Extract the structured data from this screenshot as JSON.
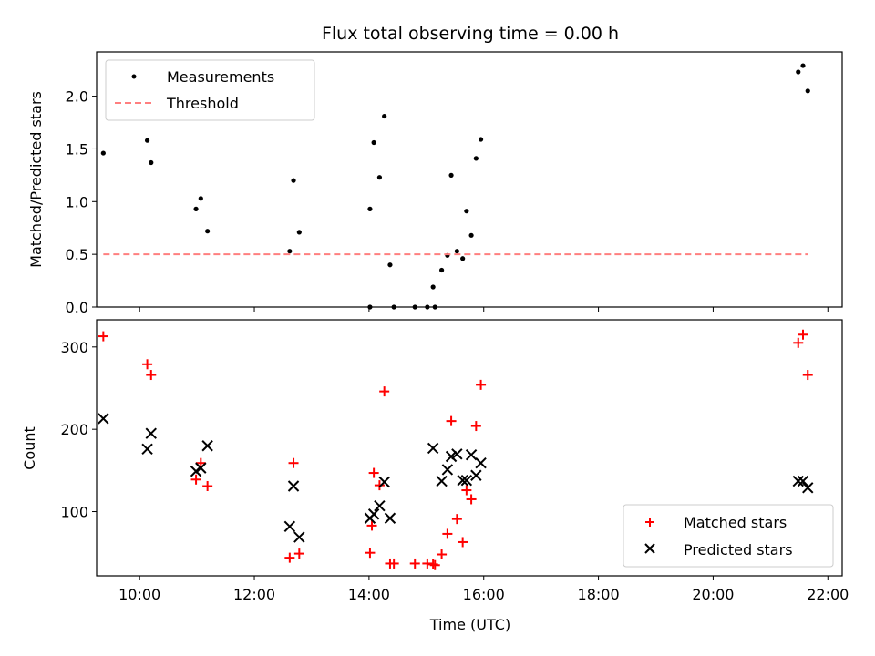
{
  "chart_data": [
    {
      "type": "scatter",
      "title": "Flux total observing time = 0.00 h",
      "ylabel": "Matched/Predicted stars",
      "xlim": [
        "09:15",
        "22:15"
      ],
      "ylim": [
        0,
        2.42
      ],
      "yticks": [
        "0.0",
        "0.5",
        "1.0",
        "1.5",
        "2.0"
      ],
      "legend_position": "top-left",
      "series": [
        {
          "name": "Measurements",
          "color": "#000000",
          "marker": "dot",
          "points": [
            [
              "09:22",
              1.46
            ],
            [
              "10:08",
              1.58
            ],
            [
              "10:12",
              1.37
            ],
            [
              "10:59",
              0.93
            ],
            [
              "11:04",
              1.03
            ],
            [
              "11:11",
              0.72
            ],
            [
              "12:37",
              0.53
            ],
            [
              "12:41",
              1.2
            ],
            [
              "12:47",
              0.71
            ],
            [
              "14:01",
              0.93
            ],
            [
              "14:05",
              1.56
            ],
            [
              "14:11",
              1.23
            ],
            [
              "14:16",
              1.81
            ],
            [
              "14:22",
              0.4
            ],
            [
              "14:26",
              0.0
            ],
            [
              "14:01",
              0.0
            ],
            [
              "14:48",
              0.0
            ],
            [
              "15:01",
              0.0
            ],
            [
              "15:07",
              0.19
            ],
            [
              "15:09",
              0.0
            ],
            [
              "15:16",
              0.35
            ],
            [
              "15:22",
              0.49
            ],
            [
              "15:26",
              1.25
            ],
            [
              "15:32",
              0.53
            ],
            [
              "15:38",
              0.46
            ],
            [
              "15:42",
              0.91
            ],
            [
              "15:47",
              0.68
            ],
            [
              "15:52",
              1.41
            ],
            [
              "15:57",
              1.59
            ],
            [
              "21:29",
              2.23
            ],
            [
              "21:34",
              2.29
            ],
            [
              "21:39",
              2.05
            ]
          ]
        },
        {
          "name": "Threshold",
          "color": "#ff7f7f",
          "style": "dashed",
          "points": [
            [
              "09:22",
              0.5
            ],
            [
              "21:39",
              0.5
            ]
          ]
        }
      ]
    },
    {
      "type": "scatter",
      "xlabel": "Time (UTC)",
      "ylabel": "Count",
      "xlim": [
        "09:15",
        "22:15"
      ],
      "ylim": [
        22,
        333
      ],
      "xticks": [
        "10:00",
        "12:00",
        "14:00",
        "16:00",
        "18:00",
        "20:00",
        "22:00"
      ],
      "yticks": [
        "100",
        "200",
        "300"
      ],
      "legend_position": "bottom-right",
      "series": [
        {
          "name": "Matched stars",
          "color": "#ff0000",
          "marker": "plus",
          "points": [
            [
              "09:22",
              313
            ],
            [
              "10:08",
              279
            ],
            [
              "10:12",
              266
            ],
            [
              "10:59",
              139
            ],
            [
              "11:04",
              159
            ],
            [
              "11:11",
              131
            ],
            [
              "12:37",
              44
            ],
            [
              "12:41",
              159
            ],
            [
              "12:47",
              49
            ],
            [
              "14:01",
              50
            ],
            [
              "14:03",
              83
            ],
            [
              "14:05",
              147
            ],
            [
              "14:11",
              132
            ],
            [
              "14:16",
              246
            ],
            [
              "14:22",
              37
            ],
            [
              "14:26",
              37
            ],
            [
              "14:48",
              37
            ],
            [
              "15:01",
              37
            ],
            [
              "15:07",
              36
            ],
            [
              "15:09",
              35
            ],
            [
              "15:16",
              48
            ],
            [
              "15:22",
              73
            ],
            [
              "15:26",
              210
            ],
            [
              "15:32",
              91
            ],
            [
              "15:38",
              63
            ],
            [
              "15:42",
              126
            ],
            [
              "15:47",
              115
            ],
            [
              "15:52",
              204
            ],
            [
              "15:57",
              254
            ],
            [
              "21:29",
              305
            ],
            [
              "21:34",
              315
            ],
            [
              "21:39",
              266
            ]
          ]
        },
        {
          "name": "Predicted stars",
          "color": "#000000",
          "marker": "x",
          "points": [
            [
              "09:22",
              213
            ],
            [
              "10:08",
              176
            ],
            [
              "10:12",
              195
            ],
            [
              "10:59",
              149
            ],
            [
              "11:04",
              153
            ],
            [
              "11:11",
              180
            ],
            [
              "12:37",
              82
            ],
            [
              "12:41",
              131
            ],
            [
              "12:47",
              69
            ],
            [
              "14:01",
              92
            ],
            [
              "14:05",
              97
            ],
            [
              "14:11",
              107
            ],
            [
              "14:16",
              136
            ],
            [
              "14:22",
              92
            ],
            [
              "15:07",
              177
            ],
            [
              "15:16",
              137
            ],
            [
              "15:22",
              151
            ],
            [
              "15:26",
              167
            ],
            [
              "15:32",
              170
            ],
            [
              "15:38",
              138
            ],
            [
              "15:42",
              138
            ],
            [
              "15:47",
              169
            ],
            [
              "15:52",
              144
            ],
            [
              "15:57",
              159
            ],
            [
              "21:29",
              137
            ],
            [
              "21:34",
              137
            ],
            [
              "21:39",
              129
            ]
          ]
        }
      ]
    }
  ]
}
